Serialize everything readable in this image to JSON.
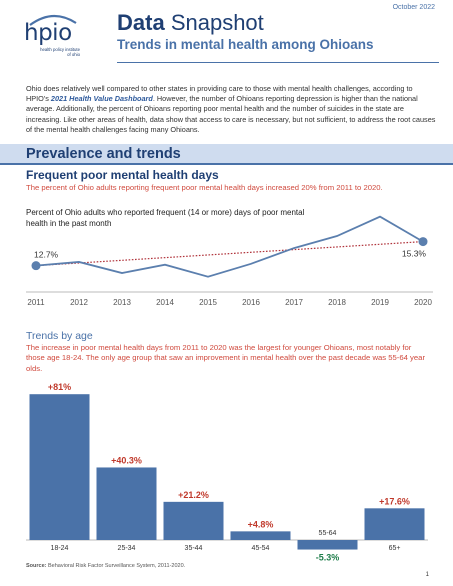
{
  "header": {
    "date": "October 2022",
    "logo_text": "hpio",
    "logo_sub_1": "health policy institute",
    "logo_sub_2": "of ohio",
    "title_bold": "Data",
    "title_rest": "Snapshot",
    "subtitle": "Trends in mental health among Ohioans"
  },
  "intro": {
    "part1": "Ohio does relatively well compared to other states in providing care to those with mental health challenges, according to HPIO's ",
    "link": "2021 Health Value Dashboard",
    "part2": ". However, the number of Ohioans reporting depression is higher than the national average. Additionally, the percent of Ohioans reporting poor mental health and the number of suicides in the state are increasing. Like other areas of health, data show that access to care is necessary, but not sufficient, to address the root causes of the mental health challenges facing many Ohioans."
  },
  "section1": {
    "heading": "Prevalence and trends",
    "title": "Frequent poor mental health days",
    "description": "The percent of Ohio adults reporting frequent poor mental health days increased 20% from 2011 to 2020.",
    "chart_label": "Percent of Ohio adults who reported frequent (14 or more) days of poor mental health in the past month"
  },
  "section2": {
    "title": "Trends by age",
    "description": "The increase in poor mental health days from 2011 to 2020 was the largest for younger Ohioans, most notably for those age 18-24. The only age group that saw an improvement in mental health over the past decade was 55-64 year olds."
  },
  "footer": {
    "source_label": "Source:",
    "source_text": " Behavioral Risk Factor Surveillance System, 2011-2020.",
    "page_number": "1"
  },
  "colors": {
    "navy": "#1f3f73",
    "blue": "#4a72a8",
    "red": "#d04a3e",
    "light_blue": "#cfdcef"
  },
  "chart_data": [
    {
      "type": "line",
      "x": [
        2011,
        2012,
        2013,
        2014,
        2015,
        2016,
        2017,
        2018,
        2019,
        2020
      ],
      "series": [
        {
          "values": [
            12.7,
            13.1,
            11.9,
            12.8,
            11.5,
            12.9,
            14.6,
            15.9,
            18.0,
            15.3
          ]
        }
      ],
      "trendline": [
        12.7,
        15.3
      ],
      "data_labels": {
        "first": "12.7%",
        "last": "15.3%"
      },
      "ylim": [
        10.5,
        18.5
      ],
      "grid": false
    },
    {
      "type": "bar",
      "categories": [
        "18-24",
        "25-34",
        "35-44",
        "45-54",
        "55-64",
        "65+"
      ],
      "values": [
        81,
        40.3,
        21.2,
        4.8,
        -5.3,
        17.6
      ],
      "labels": [
        "+81%",
        "+40.3%",
        "+21.2%",
        "+4.8%",
        "-5.3%",
        "+17.6%"
      ],
      "grid": false
    }
  ]
}
